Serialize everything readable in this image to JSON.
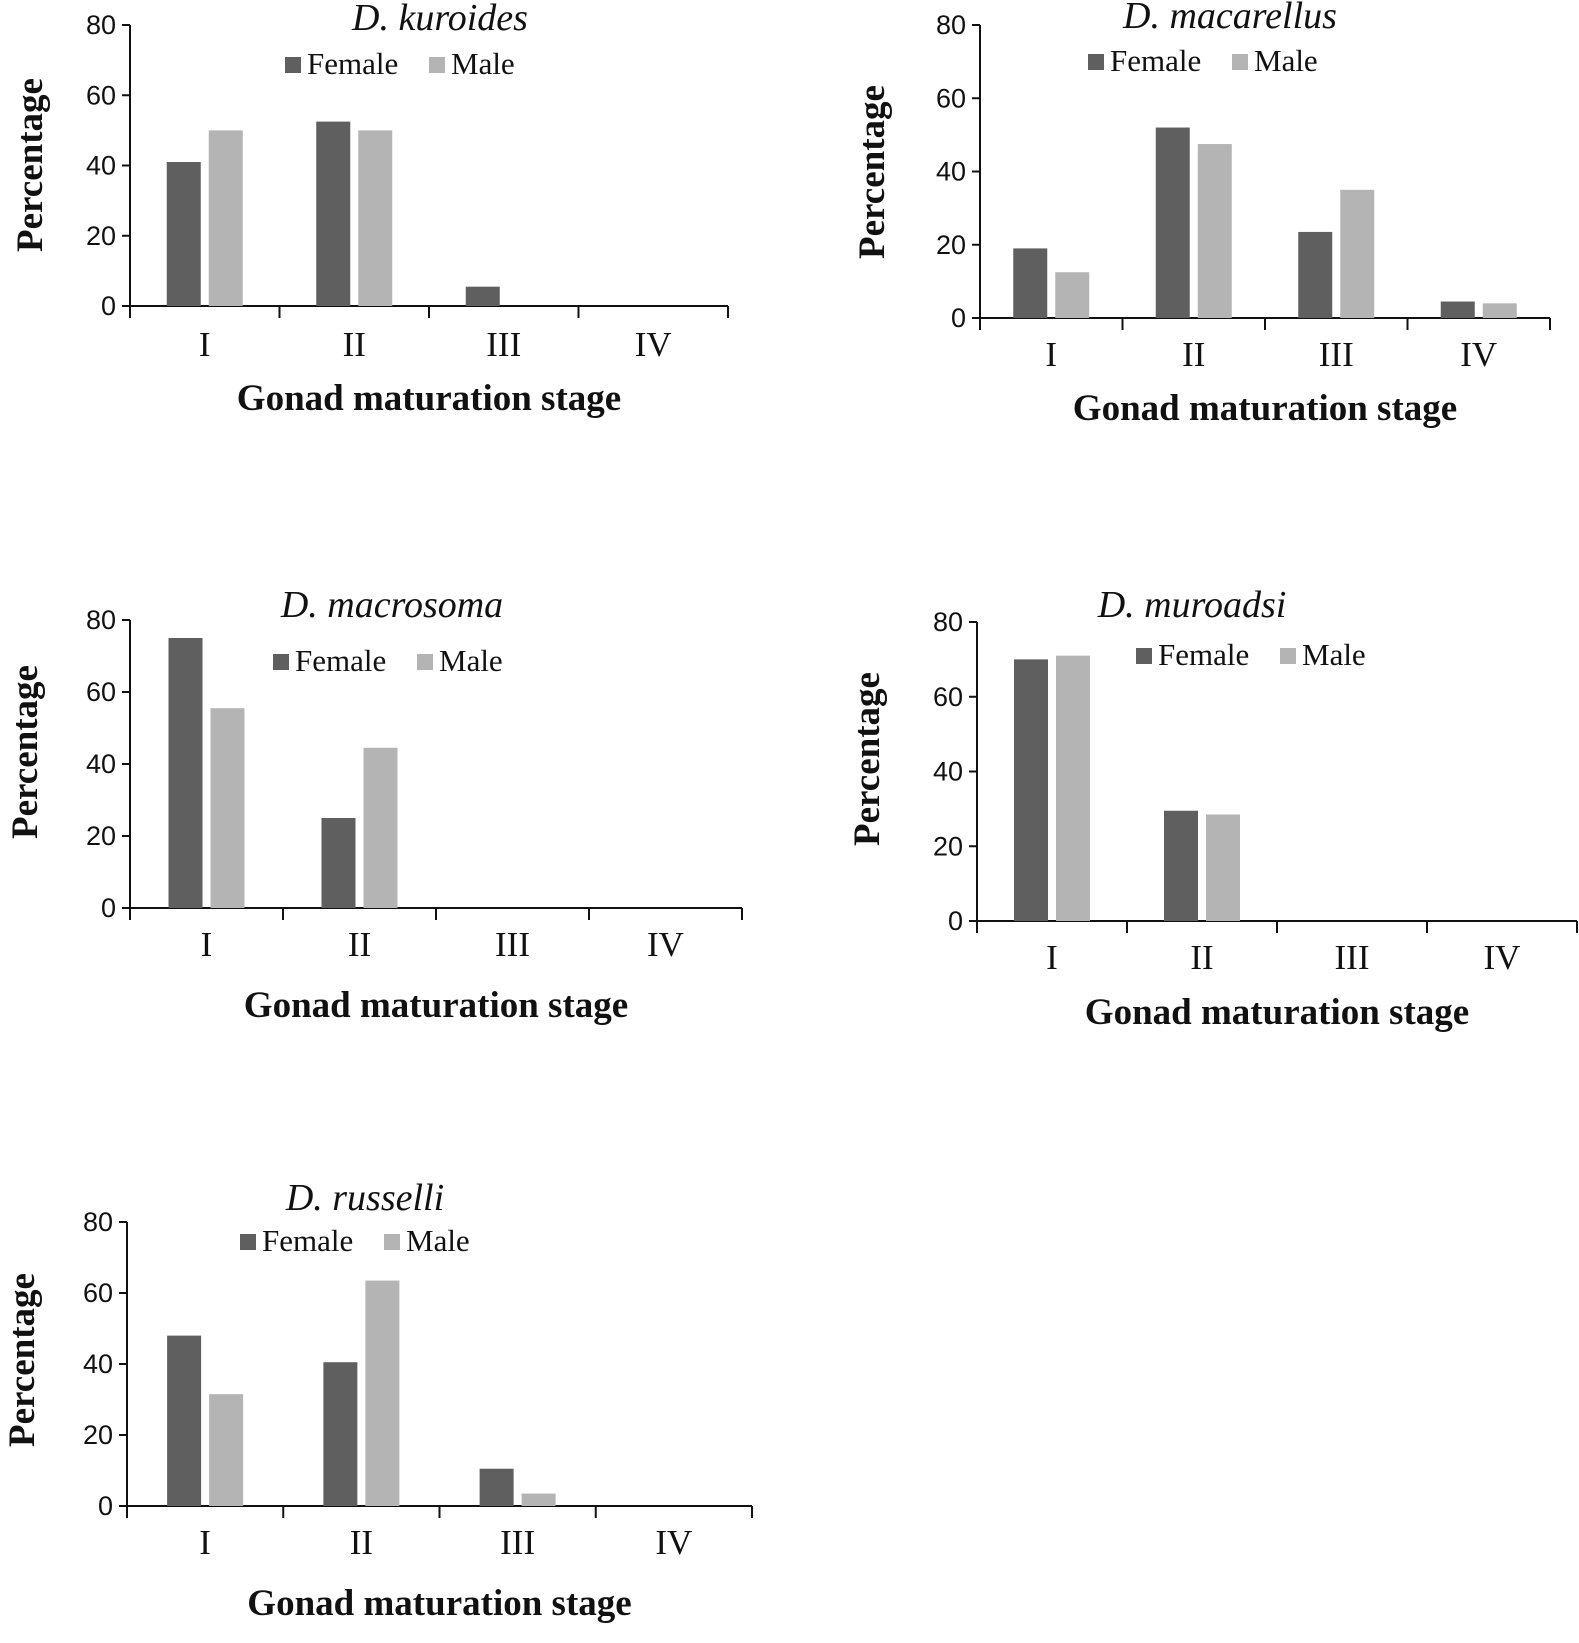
{
  "chart_data": [
    {
      "type": "bar",
      "title": "D. kuroides",
      "xlabel": "Gonad maturation stage",
      "ylabel": "Percentage",
      "categories": [
        "I",
        "II",
        "III",
        "IV"
      ],
      "ylim": [
        0,
        80
      ],
      "yticks": [
        0,
        20,
        40,
        60,
        80
      ],
      "legend_position": "top-center",
      "series": [
        {
          "name": "Female",
          "color": "#5f5f5f",
          "values": [
            41,
            52.5,
            5.5,
            0
          ]
        },
        {
          "name": "Male",
          "color": "#b4b4b4",
          "values": [
            50,
            50,
            0,
            0
          ]
        }
      ]
    },
    {
      "type": "bar",
      "title": "D. macarellus",
      "xlabel": "Gonad maturation stage",
      "ylabel": "Percentage",
      "categories": [
        "I",
        "II",
        "III",
        "IV"
      ],
      "ylim": [
        0,
        80
      ],
      "yticks": [
        0,
        20,
        40,
        60,
        80
      ],
      "legend_position": "top-center",
      "series": [
        {
          "name": "Female",
          "color": "#5f5f5f",
          "values": [
            19,
            52,
            23.5,
            4.5
          ]
        },
        {
          "name": "Male",
          "color": "#b4b4b4",
          "values": [
            12.5,
            47.5,
            35,
            4
          ]
        }
      ]
    },
    {
      "type": "bar",
      "title": "D. macrosoma",
      "xlabel": "Gonad maturation stage",
      "ylabel": "Percentage",
      "categories": [
        "I",
        "II",
        "III",
        "IV"
      ],
      "ylim": [
        0,
        80
      ],
      "yticks": [
        0,
        20,
        40,
        60,
        80
      ],
      "legend_position": "top-center",
      "series": [
        {
          "name": "Female",
          "color": "#5f5f5f",
          "values": [
            75,
            25,
            0,
            0
          ]
        },
        {
          "name": "Male",
          "color": "#b4b4b4",
          "values": [
            55.5,
            44.5,
            0,
            0
          ]
        }
      ]
    },
    {
      "type": "bar",
      "title": "D. muroadsi",
      "xlabel": "Gonad maturation stage",
      "ylabel": "Percentage",
      "categories": [
        "I",
        "II",
        "III",
        "IV"
      ],
      "ylim": [
        0,
        80
      ],
      "yticks": [
        0,
        20,
        40,
        60,
        80
      ],
      "legend_position": "top-center",
      "series": [
        {
          "name": "Female",
          "color": "#5f5f5f",
          "values": [
            70,
            29.5,
            0,
            0
          ]
        },
        {
          "name": "Male",
          "color": "#b4b4b4",
          "values": [
            71,
            28.5,
            0,
            0
          ]
        }
      ]
    },
    {
      "type": "bar",
      "title": "D. russelli",
      "xlabel": "Gonad maturation stage",
      "ylabel": "Percentage",
      "categories": [
        "I",
        "II",
        "III",
        "IV"
      ],
      "ylim": [
        0,
        80
      ],
      "yticks": [
        0,
        20,
        40,
        60,
        80
      ],
      "legend_position": "top-center",
      "series": [
        {
          "name": "Female",
          "color": "#5f5f5f",
          "values": [
            48,
            40.5,
            10.5,
            0
          ]
        },
        {
          "name": "Male",
          "color": "#b4b4b4",
          "values": [
            31.5,
            63.5,
            3.5,
            0
          ]
        }
      ]
    }
  ]
}
